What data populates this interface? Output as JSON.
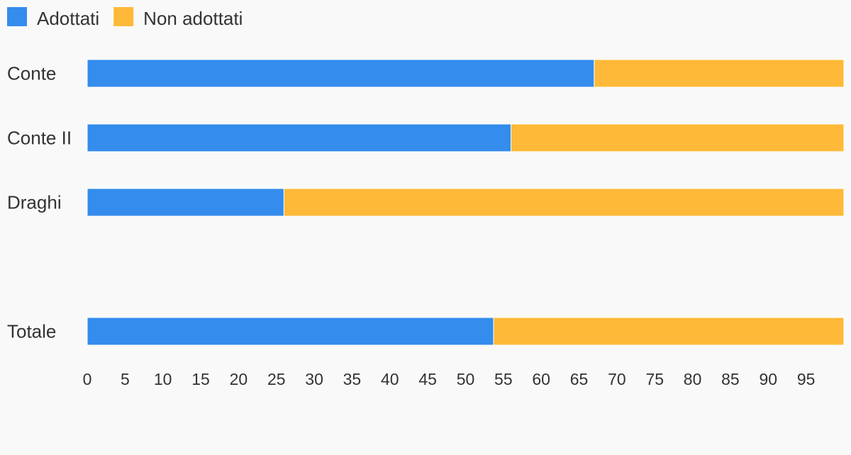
{
  "chart_data": {
    "type": "bar",
    "orientation": "horizontal",
    "stacked": true,
    "categories": [
      "Conte",
      "Conte II",
      "Draghi",
      "",
      "Totale"
    ],
    "series": [
      {
        "name": "Adottati",
        "color": "#348ced",
        "values": [
          67,
          56,
          26,
          null,
          53.7
        ]
      },
      {
        "name": "Non adottati",
        "color": "#ffb938",
        "values": [
          33,
          44,
          74,
          null,
          46.3
        ]
      }
    ],
    "x_ticks": [
      "0",
      "5",
      "10",
      "15",
      "20",
      "25",
      "30",
      "35",
      "40",
      "45",
      "50",
      "55",
      "60",
      "65",
      "70",
      "75",
      "80",
      "85",
      "90",
      "95"
    ],
    "xlim": [
      0,
      100
    ],
    "grid": false,
    "legend_position": "top-left",
    "title": "",
    "xlabel": "",
    "ylabel": ""
  }
}
